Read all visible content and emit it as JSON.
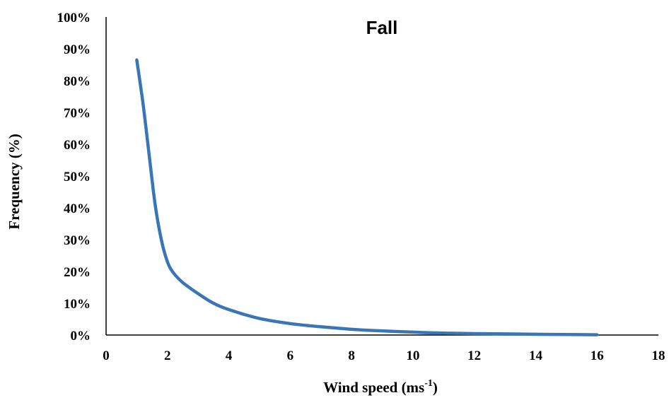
{
  "chart_data": {
    "type": "line",
    "title": "Fall",
    "xlabel": "Wind speed (ms",
    "xlabel_sup": "-1",
    "xlabel_suffix": ")",
    "ylabel": "Frequency (%)",
    "xlim": [
      0,
      18
    ],
    "ylim": [
      0,
      100
    ],
    "x_ticks": [
      0,
      2,
      4,
      6,
      8,
      10,
      12,
      14,
      16,
      18
    ],
    "y_ticks": [
      0,
      10,
      20,
      30,
      40,
      50,
      60,
      70,
      80,
      90,
      100
    ],
    "y_tick_labels": [
      "0%",
      "10%",
      "20%",
      "30%",
      "40%",
      "50%",
      "60%",
      "70%",
      "80%",
      "90%",
      "100%"
    ],
    "grid": false,
    "legend": "none",
    "series": [
      {
        "color": "#3a75b5",
        "x": [
          1,
          1.2,
          1.4,
          1.6,
          1.8,
          2,
          2.2,
          2.5,
          3,
          3.5,
          4,
          5,
          6,
          7,
          8,
          9,
          10,
          11,
          12,
          13,
          14,
          15,
          16
        ],
        "y": [
          86.5,
          73,
          57,
          41,
          30,
          23,
          19.5,
          16.5,
          13,
          10,
          8,
          5.2,
          3.6,
          2.6,
          1.8,
          1.3,
          0.9,
          0.6,
          0.45,
          0.35,
          0.25,
          0.15,
          0.1
        ]
      }
    ]
  }
}
